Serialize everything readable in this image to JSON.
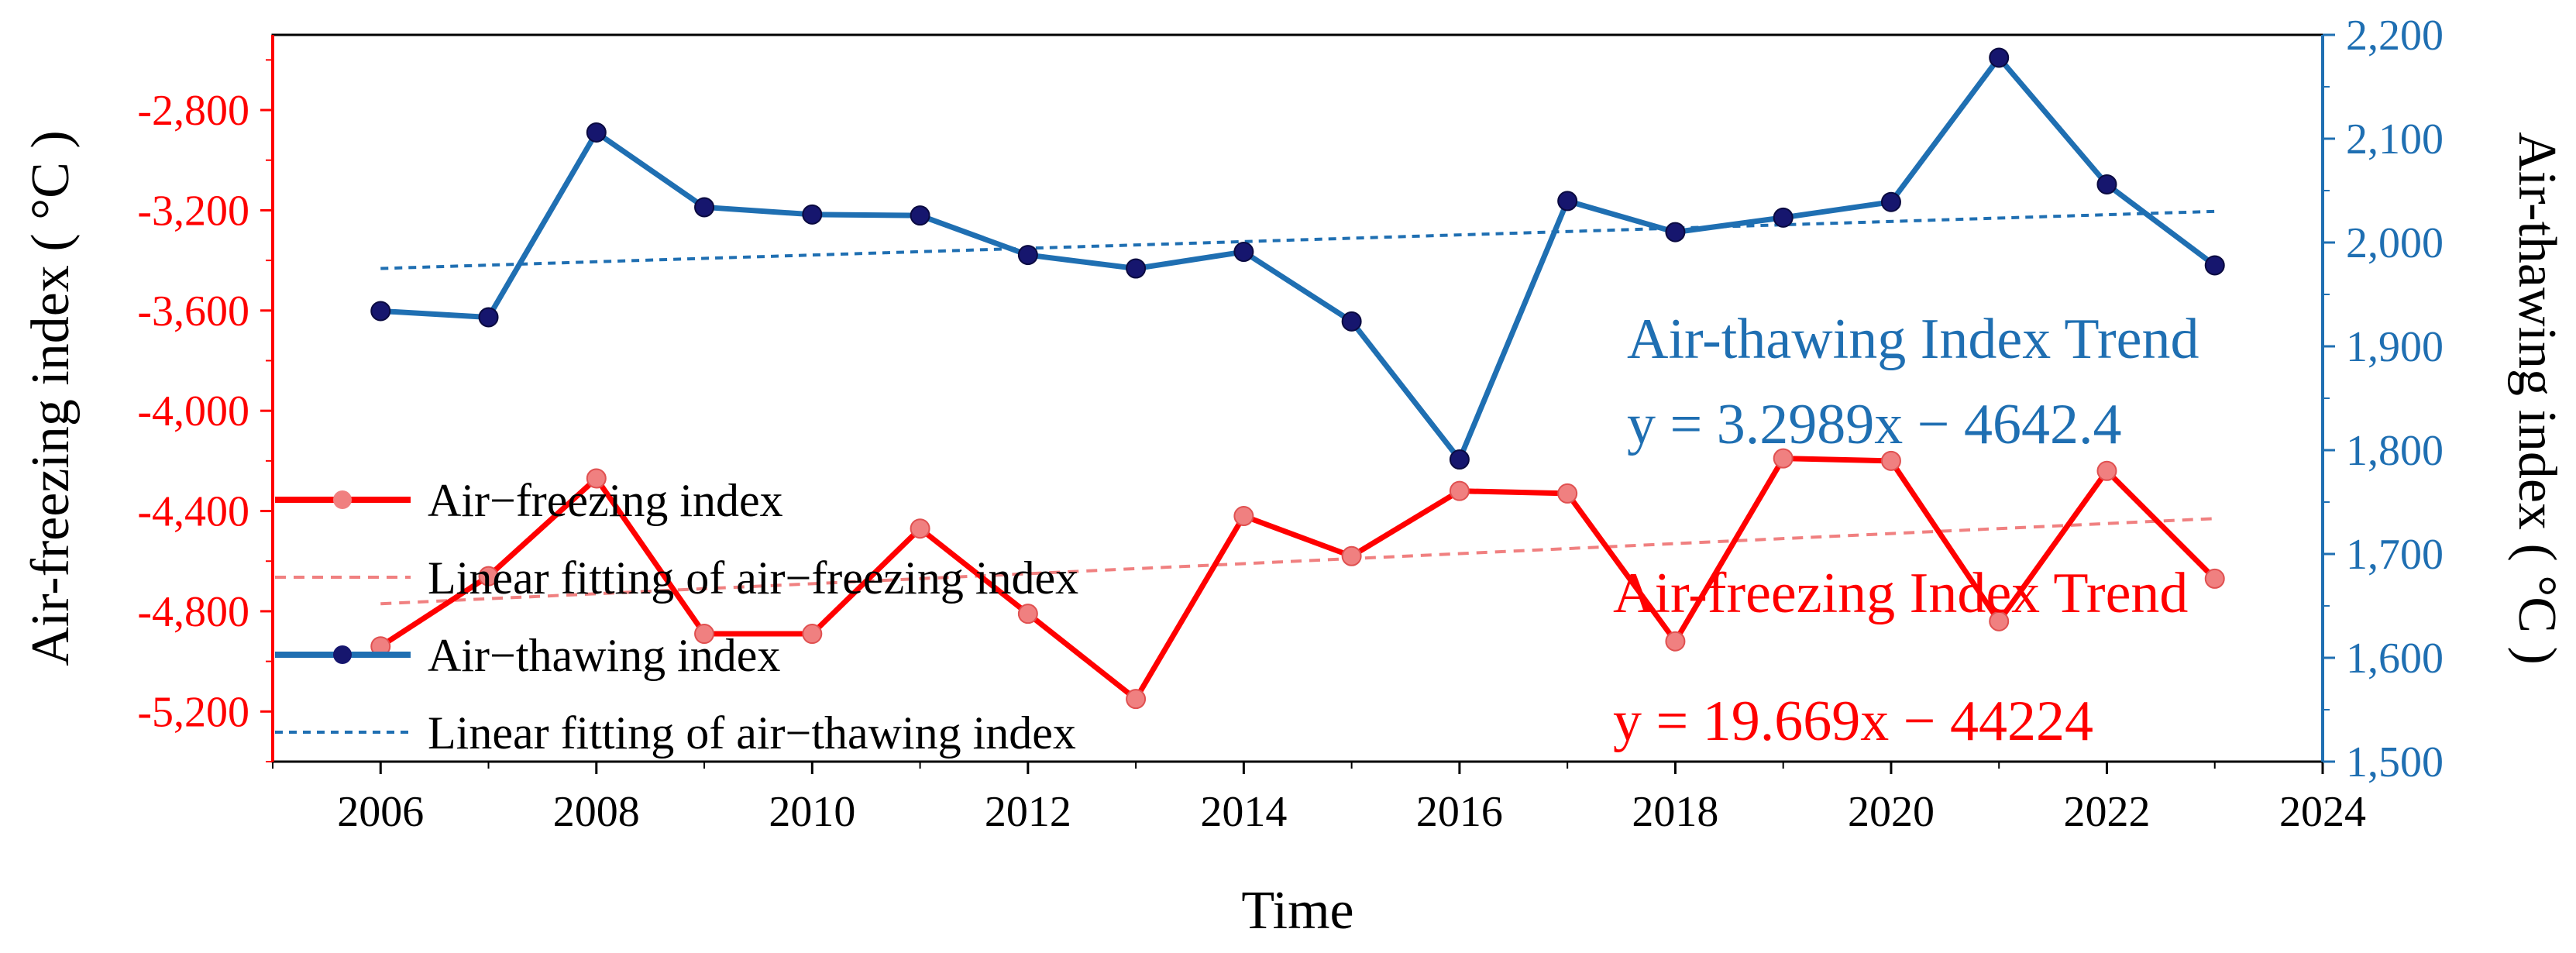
{
  "chart_data": {
    "type": "line",
    "xlabel": "Time",
    "ylabel_left": "Air-freezing index ( °C )",
    "ylabel_right": "Air-thawing index ( °C )",
    "xlim": [
      2005,
      2024
    ],
    "ylim_left": [
      -5400,
      -2500
    ],
    "ylim_right": [
      1500,
      2200
    ],
    "x_ticks": [
      2006,
      2008,
      2010,
      2012,
      2014,
      2016,
      2018,
      2020,
      2022,
      2024
    ],
    "y_left_ticks": [
      -2800,
      -3200,
      -3600,
      -4000,
      -4400,
      -4800,
      -5200
    ],
    "y_left_tick_labels": [
      "-2,800",
      "-3,200",
      "-3,600",
      "-4,000",
      "-4,400",
      "-4,800",
      "-5,200"
    ],
    "y_right_ticks": [
      2200,
      2100,
      2000,
      1900,
      1800,
      1700,
      1600,
      1500
    ],
    "y_right_tick_labels": [
      "2,200",
      "2,100",
      "2,000",
      "1,900",
      "1,800",
      "1,700",
      "1,600",
      "1,500"
    ],
    "x": [
      2006,
      2007,
      2008,
      2009,
      2010,
      2011,
      2012,
      2013,
      2014,
      2015,
      2016,
      2017,
      2018,
      2019,
      2020,
      2021,
      2022,
      2023
    ],
    "series": [
      {
        "name": "Air−freezing index",
        "axis": "left",
        "color": "#ff0000",
        "marker_color": "#f08080",
        "values": [
          -4940,
          -4660,
          -4270,
          -4890,
          -4890,
          -4470,
          -4810,
          -5150,
          -4420,
          -4580,
          -4320,
          -4330,
          -4920,
          -4190,
          -4200,
          -4840,
          -4240,
          -4670
        ]
      },
      {
        "name": "Air−thawing index",
        "axis": "right",
        "color": "#1f6fb2",
        "marker_color": "#16166e",
        "values": [
          1934,
          1928,
          2106,
          2034,
          2027,
          2026,
          1988,
          1975,
          1991,
          1924,
          1791,
          2040,
          2010,
          2024,
          2039,
          2178,
          2056,
          1978
        ]
      }
    ],
    "trendlines": [
      {
        "name": "Linear fitting of air−freezing index",
        "axis": "left",
        "color": "#f08080",
        "x": [
          2006,
          2023
        ],
        "y": [
          -4770,
          -4430
        ]
      },
      {
        "name": "Linear fitting of air−thawing index",
        "axis": "right",
        "color": "#1f6fb2",
        "x": [
          2006,
          2023
        ],
        "y": [
          1975,
          2030
        ]
      }
    ],
    "legend": {
      "placement": "bottom-left",
      "entries": [
        "Air−freezing index",
        "Linear fitting of air−freezing index",
        "Air−thawing index",
        "Linear fitting of air−thawing index"
      ]
    },
    "annotations": {
      "thaw_title": "Air-thawing Index Trend",
      "thaw_eq": "y = 3.2989x − 4642.4",
      "freeze_title": "Air-freezing Index Trend",
      "freeze_eq": "y = 19.669x − 44224"
    },
    "colors": {
      "left_axis": "#ff0000",
      "right_axis": "#1f6fb2",
      "freeze_fit": "#f08080",
      "thaw_fit": "#1f6fb2"
    }
  }
}
